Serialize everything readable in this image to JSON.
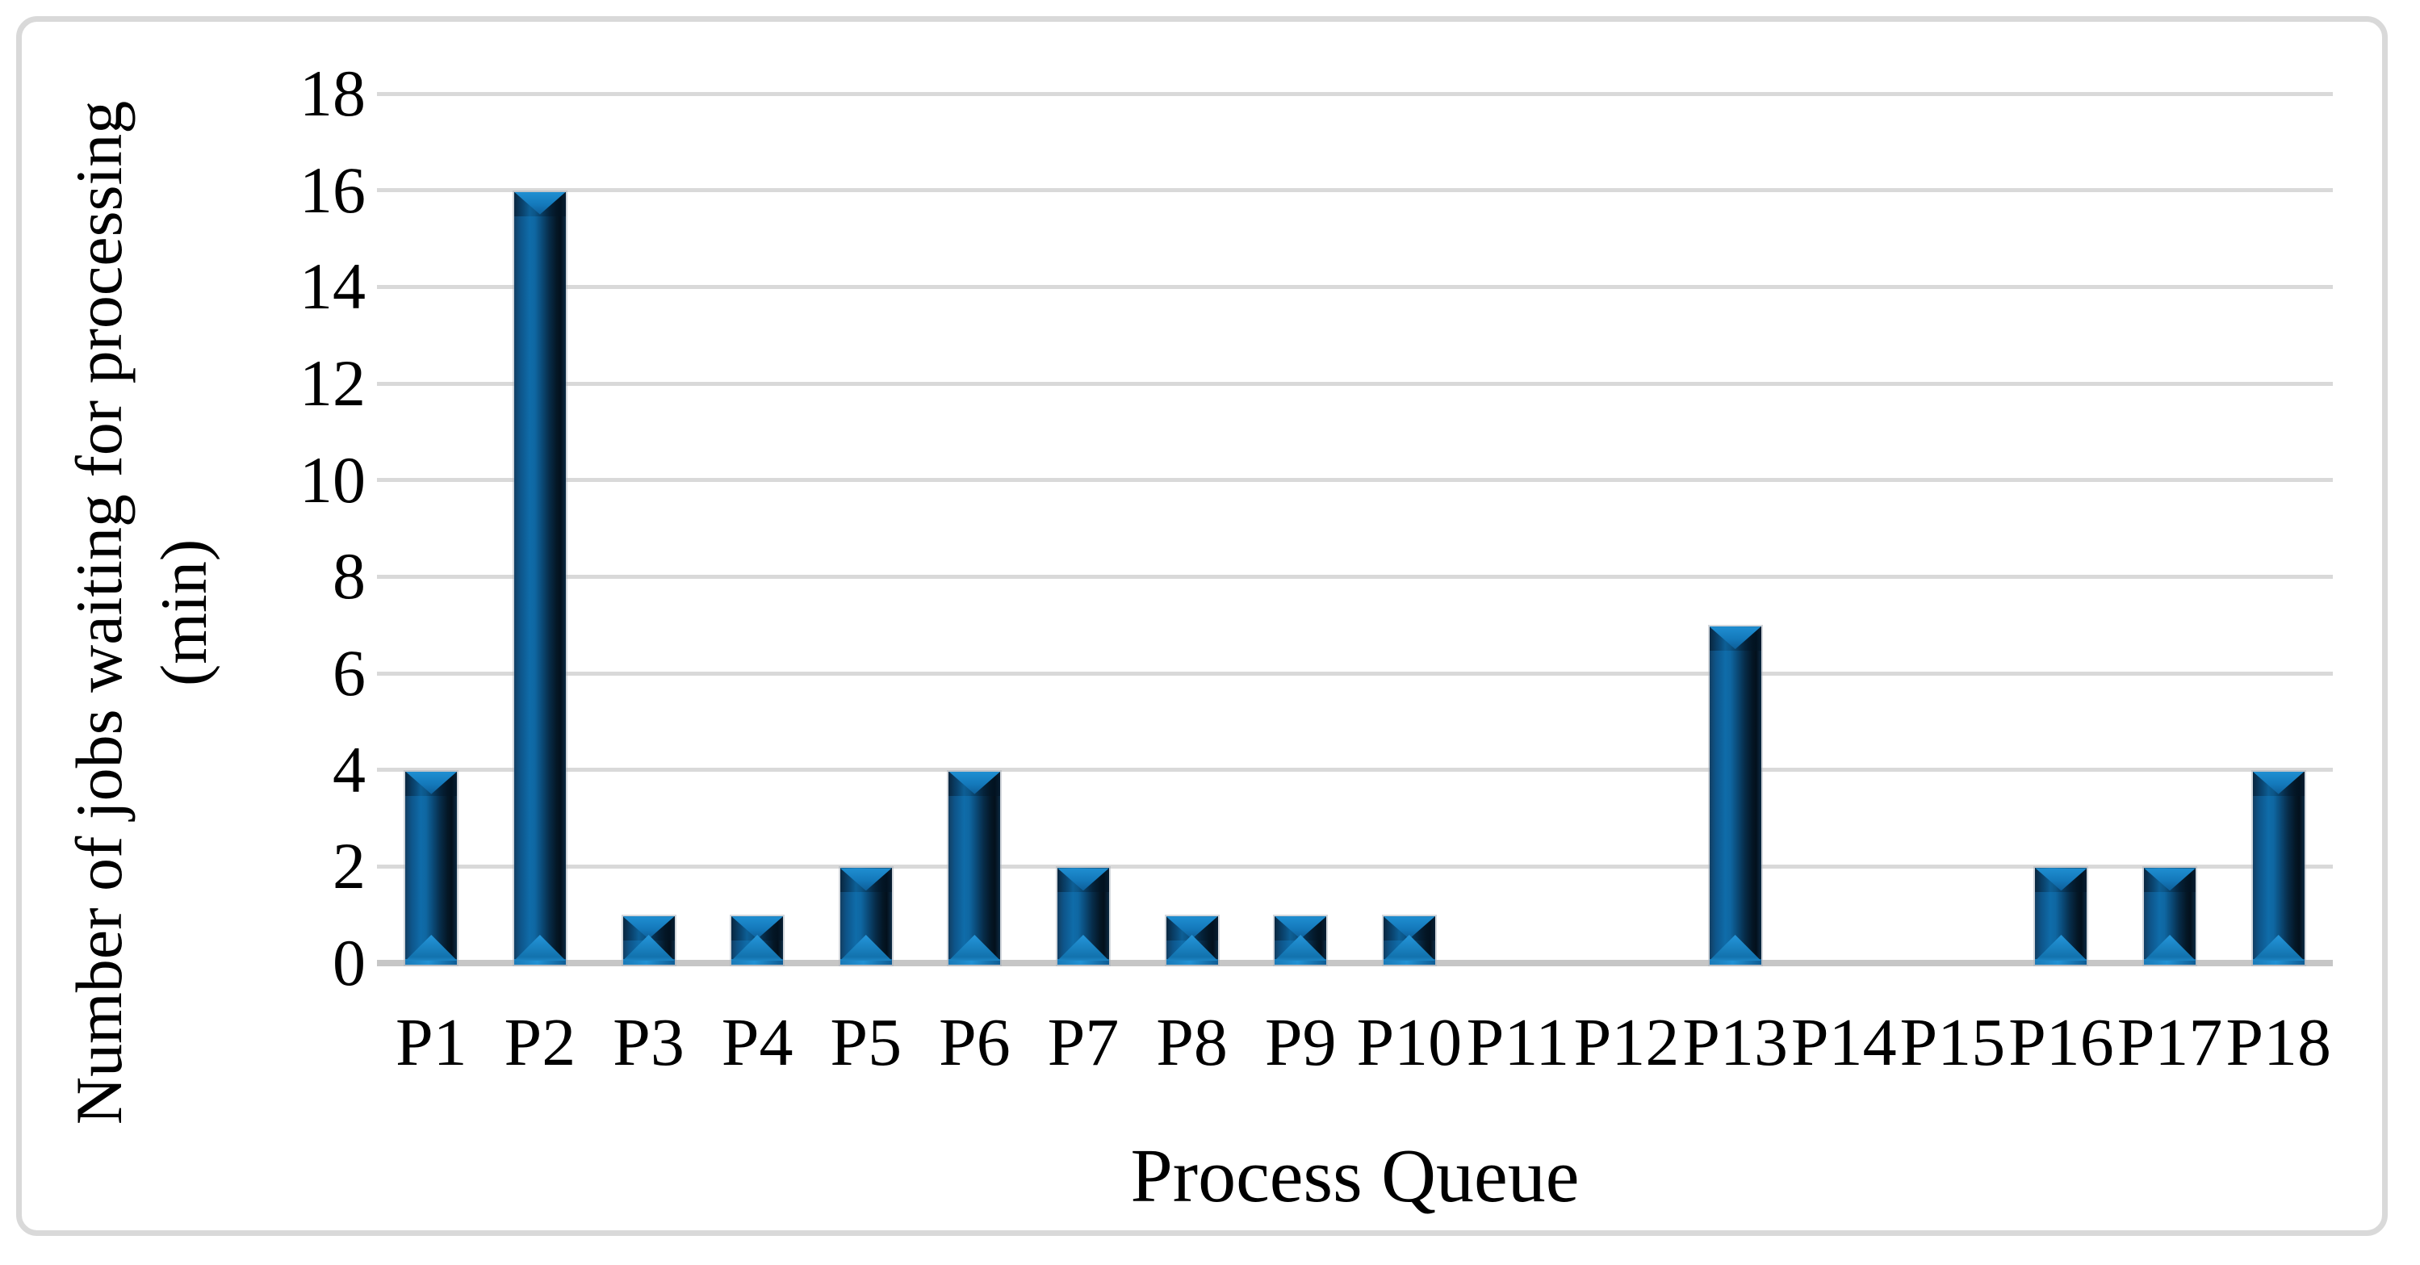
{
  "chart_data": {
    "type": "bar",
    "title": "",
    "xlabel": "Process Queue",
    "ylabel": "Number of jobs waiting for processing (min)",
    "ylabel_lines": [
      "Number of jobs waiting for processing",
      "(min)"
    ],
    "categories": [
      "P1",
      "P2",
      "P3",
      "P4",
      "P5",
      "P6",
      "P7",
      "P8",
      "P9",
      "P10",
      "P11",
      "P12",
      "P13",
      "P14",
      "P15",
      "P16",
      "P17",
      "P18"
    ],
    "values": [
      4,
      16,
      1,
      1,
      2,
      4,
      2,
      1,
      1,
      1,
      0,
      0,
      7,
      0,
      0,
      2,
      2,
      4
    ],
    "yticks": [
      0,
      2,
      4,
      6,
      8,
      10,
      12,
      14,
      16,
      18
    ],
    "ylim": [
      0,
      18
    ],
    "grid": "horizontal-only",
    "legend": "none",
    "colors": {
      "bar_mid": "#0f6ca9",
      "bar_edge_dark": "#03101c",
      "bar_highlight": "#1f8fd2",
      "gridline": "#d9d9d9",
      "axis_line": "#c6c6c6",
      "frame_border": "#d9d9d9",
      "text": "#000000",
      "background": "#ffffff"
    }
  }
}
